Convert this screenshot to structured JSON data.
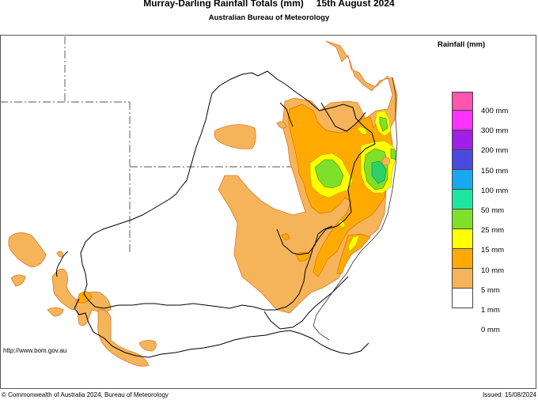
{
  "header": {
    "title": "Murray-Darling Rainfall Totals (mm)",
    "date": "15th August 2024",
    "subtitle": "Australian Bureau of Meteorology"
  },
  "legend": {
    "title": "Rainfall (mm)",
    "items": [
      {
        "label": "400 mm",
        "color": "#ff55b0"
      },
      {
        "label": "300 mm",
        "color": "#ff33ff"
      },
      {
        "label": "200 mm",
        "color": "#a020e8"
      },
      {
        "label": "150 mm",
        "color": "#4a4ae0"
      },
      {
        "label": "100 mm",
        "color": "#18a8f0"
      },
      {
        "label": "50 mm",
        "color": "#1de6a0"
      },
      {
        "label": "25 mm",
        "color": "#7ee02a"
      },
      {
        "label": "15 mm",
        "color": "#ffff00"
      },
      {
        "label": "10 mm",
        "color": "#ffaa00"
      },
      {
        "label": "5 mm",
        "color": "#f6b45a"
      },
      {
        "label": "1 mm",
        "color": "#ffffff"
      },
      {
        "label": "0 mm",
        "color": null
      }
    ]
  },
  "footer": {
    "url": "http://www.bom.gov.au",
    "copyright": "© Commonwealth of Australia 2024, Bureau of Meteorology",
    "issued": "Issued: 15/08/2024"
  }
}
